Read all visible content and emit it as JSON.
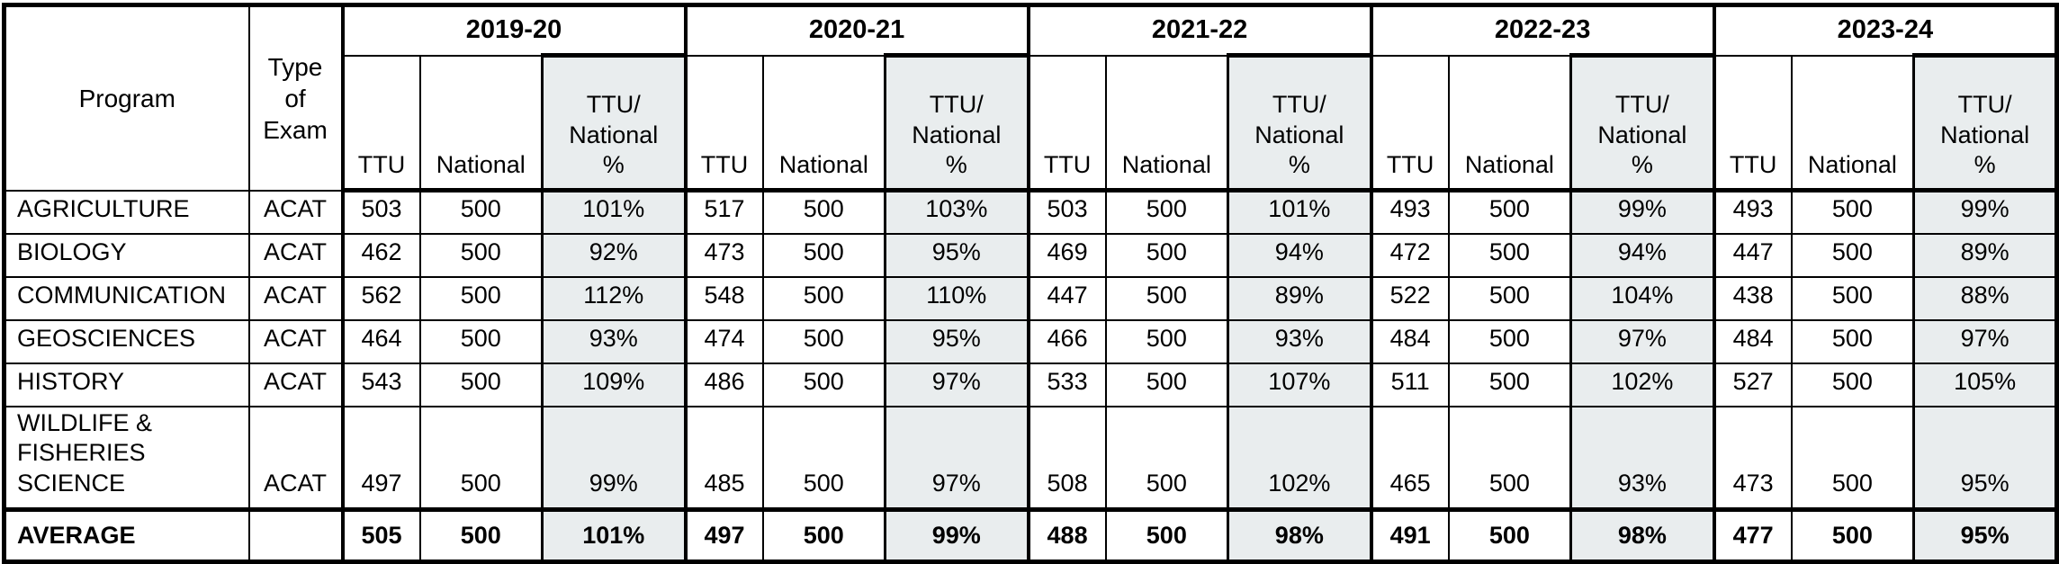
{
  "header": {
    "program": "Program",
    "type_of_exam": "Type\nof\nExam",
    "ttu": "TTU",
    "national": "National",
    "ttu_national_pct": "TTU/\nNational\n%"
  },
  "years": [
    {
      "label": "2019-20"
    },
    {
      "label": "2020-21"
    },
    {
      "label": "2021-22"
    },
    {
      "label": "2022-23"
    },
    {
      "label": "2023-24"
    }
  ],
  "rows": [
    {
      "program": "AGRICULTURE",
      "type": "ACAT",
      "bold": false,
      "scores": [
        {
          "ttu": "503",
          "national": "500",
          "pct": "101%"
        },
        {
          "ttu": "517",
          "national": "500",
          "pct": "103%"
        },
        {
          "ttu": "503",
          "national": "500",
          "pct": "101%"
        },
        {
          "ttu": "493",
          "national": "500",
          "pct": "99%"
        },
        {
          "ttu": "493",
          "national": "500",
          "pct": "99%"
        }
      ]
    },
    {
      "program": "BIOLOGY",
      "type": "ACAT",
      "bold": false,
      "scores": [
        {
          "ttu": "462",
          "national": "500",
          "pct": "92%"
        },
        {
          "ttu": "473",
          "national": "500",
          "pct": "95%"
        },
        {
          "ttu": "469",
          "national": "500",
          "pct": "94%"
        },
        {
          "ttu": "472",
          "national": "500",
          "pct": "94%"
        },
        {
          "ttu": "447",
          "national": "500",
          "pct": "89%"
        }
      ]
    },
    {
      "program": "COMMUNICATION",
      "type": "ACAT",
      "bold": false,
      "scores": [
        {
          "ttu": "562",
          "national": "500",
          "pct": "112%"
        },
        {
          "ttu": "548",
          "national": "500",
          "pct": "110%"
        },
        {
          "ttu": "447",
          "national": "500",
          "pct": "89%"
        },
        {
          "ttu": "522",
          "national": "500",
          "pct": "104%"
        },
        {
          "ttu": "438",
          "national": "500",
          "pct": "88%"
        }
      ]
    },
    {
      "program": "GEOSCIENCES",
      "type": "ACAT",
      "bold": false,
      "scores": [
        {
          "ttu": "464",
          "national": "500",
          "pct": "93%"
        },
        {
          "ttu": "474",
          "national": "500",
          "pct": "95%"
        },
        {
          "ttu": "466",
          "national": "500",
          "pct": "93%"
        },
        {
          "ttu": "484",
          "national": "500",
          "pct": "97%"
        },
        {
          "ttu": "484",
          "national": "500",
          "pct": "97%"
        }
      ]
    },
    {
      "program": "HISTORY",
      "type": "ACAT",
      "bold": false,
      "scores": [
        {
          "ttu": "543",
          "national": "500",
          "pct": "109%"
        },
        {
          "ttu": "486",
          "national": "500",
          "pct": "97%"
        },
        {
          "ttu": "533",
          "national": "500",
          "pct": "107%"
        },
        {
          "ttu": "511",
          "national": "500",
          "pct": "102%"
        },
        {
          "ttu": "527",
          "national": "500",
          "pct": "105%"
        }
      ]
    },
    {
      "program": "WILDLIFE &\nFISHERIES SCIENCE",
      "type": "ACAT",
      "bold": false,
      "scores": [
        {
          "ttu": "497",
          "national": "500",
          "pct": "99%"
        },
        {
          "ttu": "485",
          "national": "500",
          "pct": "97%"
        },
        {
          "ttu": "508",
          "national": "500",
          "pct": "102%"
        },
        {
          "ttu": "465",
          "national": "500",
          "pct": "93%"
        },
        {
          "ttu": "473",
          "national": "500",
          "pct": "95%"
        }
      ]
    },
    {
      "program": "AVERAGE",
      "type": "",
      "bold": true,
      "scores": [
        {
          "ttu": "505",
          "national": "500",
          "pct": "101%"
        },
        {
          "ttu": "497",
          "national": "500",
          "pct": "99%"
        },
        {
          "ttu": "488",
          "national": "500",
          "pct": "98%"
        },
        {
          "ttu": "491",
          "national": "500",
          "pct": "98%"
        },
        {
          "ttu": "477",
          "national": "500",
          "pct": "95%"
        }
      ]
    }
  ],
  "colors": {
    "pct_column_bg": "#e9edee",
    "border": "#000000",
    "text": "#000000"
  }
}
